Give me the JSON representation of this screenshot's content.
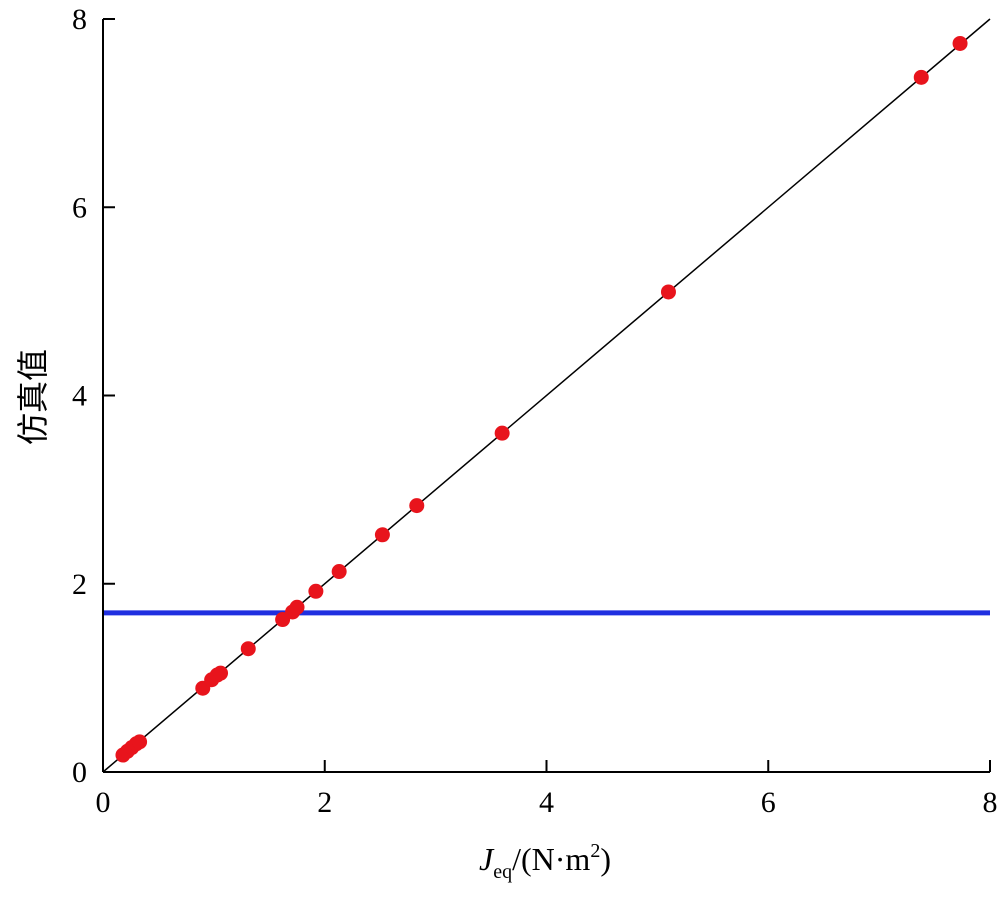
{
  "chart_data": {
    "type": "scatter",
    "title": "",
    "xlabel": {
      "main": "J",
      "sub": "eq",
      "unit": "/(N·m",
      "sup": "2",
      "close": ")"
    },
    "ylabel": "仿真值",
    "xlim": [
      0,
      8
    ],
    "ylim": [
      0,
      8
    ],
    "xticks": [
      "0",
      "2",
      "4",
      "6",
      "8"
    ],
    "yticks": [
      "0",
      "2",
      "4",
      "6",
      "8"
    ],
    "grid": false,
    "legend": "none",
    "series": [
      {
        "marker_color": "#e8141c",
        "points": [
          {
            "x": 0.18,
            "y": 0.18
          },
          {
            "x": 0.22,
            "y": 0.22
          },
          {
            "x": 0.26,
            "y": 0.26
          },
          {
            "x": 0.3,
            "y": 0.3
          },
          {
            "x": 0.33,
            "y": 0.32
          },
          {
            "x": 0.9,
            "y": 0.89
          },
          {
            "x": 0.98,
            "y": 0.98
          },
          {
            "x": 1.03,
            "y": 1.03
          },
          {
            "x": 1.06,
            "y": 1.05
          },
          {
            "x": 1.31,
            "y": 1.31
          },
          {
            "x": 1.62,
            "y": 1.62
          },
          {
            "x": 1.71,
            "y": 1.7
          },
          {
            "x": 1.75,
            "y": 1.75
          },
          {
            "x": 1.92,
            "y": 1.92
          },
          {
            "x": 2.13,
            "y": 2.13
          },
          {
            "x": 2.52,
            "y": 2.52
          },
          {
            "x": 2.83,
            "y": 2.83
          },
          {
            "x": 3.6,
            "y": 3.6
          },
          {
            "x": 5.1,
            "y": 5.1
          },
          {
            "x": 7.38,
            "y": 7.38
          },
          {
            "x": 7.73,
            "y": 7.74
          }
        ]
      }
    ],
    "reference_lines": [
      {
        "type": "diagonal",
        "from": [
          0,
          0
        ],
        "to": [
          8,
          8
        ],
        "color": "#000000"
      },
      {
        "type": "horizontal",
        "y": 1.69,
        "x_from": 0,
        "x_to": 8,
        "color": "#1f2fe0"
      }
    ]
  }
}
